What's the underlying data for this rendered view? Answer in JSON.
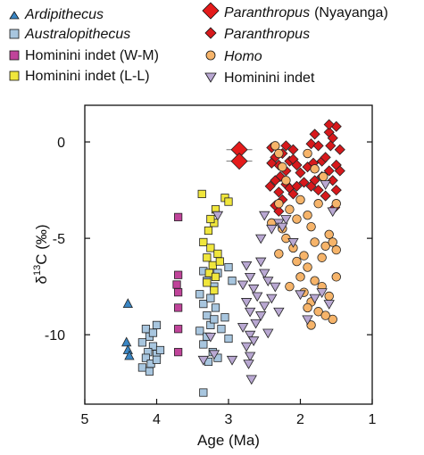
{
  "colors": {
    "ardipithecus": "#3a86c4",
    "australopithecus": "#a8c6df",
    "hominini_wm": "#c0449a",
    "hominini_ll": "#f0e63c",
    "paranthropus_nyayanga": "#e41b1b",
    "paranthropus": "#d7191c",
    "homo": "#f6b46a",
    "hominini_indet": "#b9a8d2",
    "frame": "#111111"
  },
  "chart_data": {
    "type": "scatter",
    "xlabel": "Age (Ma)",
    "ylabel_main": "δ",
    "ylabel_sup": "13",
    "ylabel_rest": "C (‰)",
    "xlim": [
      5,
      1
    ],
    "ylim": [
      -13.6,
      1.9
    ],
    "x_ticks": [
      5,
      4,
      3,
      2,
      1
    ],
    "y_ticks": [
      0,
      -5,
      -10
    ],
    "x_tick_labels": [
      "5",
      "4",
      "3",
      "2",
      "1"
    ],
    "y_tick_labels": [
      "0",
      "-5",
      "-10"
    ],
    "grid": false,
    "legend_position": "top",
    "series": [
      {
        "key": "ardipithecus",
        "name": "Ardipithecus",
        "marker": "triangle-up",
        "points": [
          [
            4.4,
            -8.4
          ],
          [
            4.42,
            -10.4
          ],
          [
            4.4,
            -10.8
          ],
          [
            4.38,
            -11.1
          ]
        ]
      },
      {
        "key": "australopithecus",
        "name": "Australopithecus",
        "marker": "square",
        "points": [
          [
            4.15,
            -9.7
          ],
          [
            4.1,
            -10.1
          ],
          [
            4.0,
            -9.5
          ],
          [
            4.2,
            -10.4
          ],
          [
            4.05,
            -10.6
          ],
          [
            4.12,
            -10.9
          ],
          [
            4.0,
            -11.0
          ],
          [
            4.15,
            -11.2
          ],
          [
            4.08,
            -11.5
          ],
          [
            4.2,
            -11.7
          ],
          [
            4.0,
            -11.3
          ],
          [
            4.1,
            -11.9
          ],
          [
            3.95,
            -10.8
          ],
          [
            4.05,
            -9.9
          ],
          [
            3.35,
            -6.7
          ],
          [
            3.3,
            -7.2
          ],
          [
            3.4,
            -7.9
          ],
          [
            3.35,
            -8.4
          ],
          [
            3.3,
            -9.0
          ],
          [
            3.25,
            -9.5
          ],
          [
            3.4,
            -9.8
          ],
          [
            3.3,
            -10.1
          ],
          [
            3.35,
            -10.5
          ],
          [
            3.2,
            -9.2
          ],
          [
            3.18,
            -8.6
          ],
          [
            3.22,
            -10.9
          ],
          [
            3.15,
            -11.2
          ],
          [
            3.28,
            -11.4
          ],
          [
            3.1,
            -9.7
          ],
          [
            3.2,
            -7.5
          ],
          [
            3.15,
            -6.8
          ],
          [
            3.25,
            -8.1
          ],
          [
            3.0,
            -6.5
          ],
          [
            2.95,
            -7.2
          ],
          [
            3.05,
            -9.1
          ],
          [
            3.0,
            -10.2
          ],
          [
            3.35,
            -13.0
          ]
        ]
      },
      {
        "key": "hominini_wm",
        "name": "Hominini indet (W-M)",
        "marker": "square",
        "points": [
          [
            3.7,
            -3.9
          ],
          [
            3.7,
            -6.9
          ],
          [
            3.72,
            -7.4
          ],
          [
            3.7,
            -7.8
          ],
          [
            3.7,
            -8.6
          ],
          [
            3.7,
            -9.7
          ],
          [
            3.7,
            -10.9
          ]
        ]
      },
      {
        "key": "hominini_ll",
        "name": "Hominini indet (L-L)",
        "marker": "square",
        "points": [
          [
            3.37,
            -2.7
          ],
          [
            3.18,
            -3.5
          ],
          [
            3.05,
            -2.9
          ],
          [
            3.0,
            -3.1
          ],
          [
            3.2,
            -4.2
          ],
          [
            3.28,
            -4.6
          ],
          [
            3.35,
            -5.2
          ],
          [
            3.25,
            -5.5
          ],
          [
            3.15,
            -5.8
          ],
          [
            3.3,
            -6.0
          ],
          [
            3.22,
            -6.4
          ],
          [
            3.12,
            -6.2
          ],
          [
            3.27,
            -6.8
          ],
          [
            3.18,
            -7.0
          ],
          [
            3.3,
            -7.3
          ],
          [
            3.2,
            -7.7
          ],
          [
            3.25,
            -4.0
          ]
        ]
      },
      {
        "key": "paranthropus_nyayanga",
        "name": "Paranthropus",
        "name_suffix": "(Nyayanga)",
        "marker": "diamond-large",
        "points": [
          [
            2.85,
            -0.4
          ],
          [
            2.85,
            -1.0
          ]
        ],
        "xerr": 0.18
      },
      {
        "key": "paranthropus",
        "name": "Paranthropus",
        "marker": "diamond",
        "points": [
          [
            2.4,
            -0.3
          ],
          [
            2.35,
            -0.8
          ],
          [
            2.3,
            -1.2
          ],
          [
            2.25,
            -0.6
          ],
          [
            2.2,
            -1.5
          ],
          [
            2.15,
            -1.0
          ],
          [
            2.1,
            -0.9
          ],
          [
            2.28,
            -1.8
          ],
          [
            2.35,
            -2.0
          ],
          [
            2.2,
            -2.2
          ],
          [
            2.3,
            -2.6
          ],
          [
            2.15,
            -2.4
          ],
          [
            2.25,
            -3.0
          ],
          [
            2.35,
            -3.3
          ],
          [
            2.05,
            -1.2
          ],
          [
            2.1,
            -2.7
          ],
          [
            2.3,
            -3.6
          ],
          [
            2.4,
            -1.1
          ],
          [
            2.42,
            -2.3
          ],
          [
            2.0,
            -1.6
          ],
          [
            2.1,
            -0.4
          ],
          [
            1.9,
            -1.3
          ],
          [
            1.85,
            -0.1
          ],
          [
            1.8,
            0.4
          ],
          [
            1.75,
            -0.2
          ],
          [
            1.7,
            -1.0
          ],
          [
            1.65,
            -0.8
          ],
          [
            1.6,
            0.5
          ],
          [
            1.55,
            0.2
          ],
          [
            1.5,
            0.8
          ],
          [
            1.45,
            -0.4
          ],
          [
            1.6,
            -1.5
          ],
          [
            1.7,
            -1.8
          ],
          [
            1.8,
            -2.0
          ],
          [
            1.85,
            -2.3
          ],
          [
            1.75,
            -2.5
          ],
          [
            1.55,
            -2.0
          ],
          [
            1.5,
            -1.2
          ],
          [
            1.65,
            -2.8
          ],
          [
            1.5,
            -2.5
          ],
          [
            1.45,
            -1.5
          ],
          [
            1.58,
            -0.2
          ],
          [
            1.82,
            -1.1
          ],
          [
            1.95,
            -2.1
          ],
          [
            2.05,
            -2.3
          ],
          [
            2.2,
            -0.2
          ],
          [
            1.6,
            0.9
          ],
          [
            1.52,
            -3.4
          ]
        ]
      },
      {
        "key": "homo",
        "name": "Homo",
        "marker": "circle",
        "points": [
          [
            2.35,
            -0.2
          ],
          [
            2.3,
            -0.6
          ],
          [
            2.25,
            -1.3
          ],
          [
            2.2,
            -2.0
          ],
          [
            2.15,
            -3.5
          ],
          [
            2.3,
            -3.2
          ],
          [
            2.4,
            -4.2
          ],
          [
            2.25,
            -4.5
          ],
          [
            2.2,
            -5.0
          ],
          [
            2.1,
            -5.5
          ],
          [
            2.05,
            -6.2
          ],
          [
            2.3,
            -5.8
          ],
          [
            2.0,
            -7.0
          ],
          [
            2.15,
            -7.5
          ],
          [
            2.05,
            -4.0
          ],
          [
            1.9,
            -3.8
          ],
          [
            1.85,
            -4.4
          ],
          [
            1.8,
            -5.2
          ],
          [
            1.95,
            -5.9
          ],
          [
            1.9,
            -6.5
          ],
          [
            1.8,
            -7.2
          ],
          [
            1.85,
            -8.3
          ],
          [
            1.75,
            -8.8
          ],
          [
            1.7,
            -6.0
          ],
          [
            1.65,
            -5.4
          ],
          [
            1.6,
            -4.8
          ],
          [
            1.55,
            -5.2
          ],
          [
            1.5,
            -5.6
          ],
          [
            1.7,
            -7.5
          ],
          [
            1.6,
            -8.0
          ],
          [
            1.55,
            -9.2
          ],
          [
            1.85,
            -9.5
          ],
          [
            1.75,
            -3.2
          ],
          [
            1.68,
            -1.8
          ],
          [
            1.8,
            -1.4
          ],
          [
            1.9,
            -0.6
          ],
          [
            2.0,
            -3.0
          ],
          [
            1.95,
            -7.8
          ],
          [
            1.9,
            -8.6
          ],
          [
            1.5,
            -3.2
          ],
          [
            1.5,
            -7.0
          ],
          [
            1.65,
            -9.0
          ]
        ]
      },
      {
        "key": "hominini_indet",
        "name": "Hominini indet",
        "marker": "triangle-down",
        "points": [
          [
            2.75,
            -6.4
          ],
          [
            2.7,
            -7.0
          ],
          [
            2.8,
            -7.4
          ],
          [
            2.65,
            -7.6
          ],
          [
            2.6,
            -8.0
          ],
          [
            2.75,
            -8.3
          ],
          [
            2.7,
            -8.8
          ],
          [
            2.62,
            -9.4
          ],
          [
            2.8,
            -9.6
          ],
          [
            2.7,
            -10.0
          ],
          [
            2.65,
            -10.3
          ],
          [
            2.75,
            -10.6
          ],
          [
            2.7,
            -11.1
          ],
          [
            2.72,
            -11.5
          ],
          [
            2.68,
            -12.3
          ],
          [
            2.55,
            -6.2
          ],
          [
            2.5,
            -6.8
          ],
          [
            2.45,
            -7.2
          ],
          [
            2.4,
            -8.1
          ],
          [
            2.5,
            -8.5
          ],
          [
            2.55,
            -9.0
          ],
          [
            2.45,
            -9.9
          ],
          [
            2.35,
            -7.5
          ],
          [
            2.3,
            -8.8
          ],
          [
            2.4,
            -4.5
          ],
          [
            2.3,
            -4.2
          ],
          [
            2.2,
            -4.0
          ],
          [
            2.1,
            -5.2
          ],
          [
            2.0,
            -7.9
          ],
          [
            1.9,
            -9.2
          ],
          [
            1.8,
            -8.1
          ],
          [
            1.7,
            -7.8
          ],
          [
            1.6,
            -8.4
          ],
          [
            1.55,
            -3.6
          ],
          [
            1.65,
            -2.2
          ],
          [
            2.55,
            -5.0
          ],
          [
            2.5,
            -3.8
          ],
          [
            2.25,
            -4.4
          ],
          [
            3.15,
            -3.8
          ],
          [
            3.25,
            -10.1
          ],
          [
            2.95,
            -11.3
          ],
          [
            3.35,
            -11.3
          ],
          [
            3.2,
            -11.0
          ]
        ]
      }
    ]
  }
}
